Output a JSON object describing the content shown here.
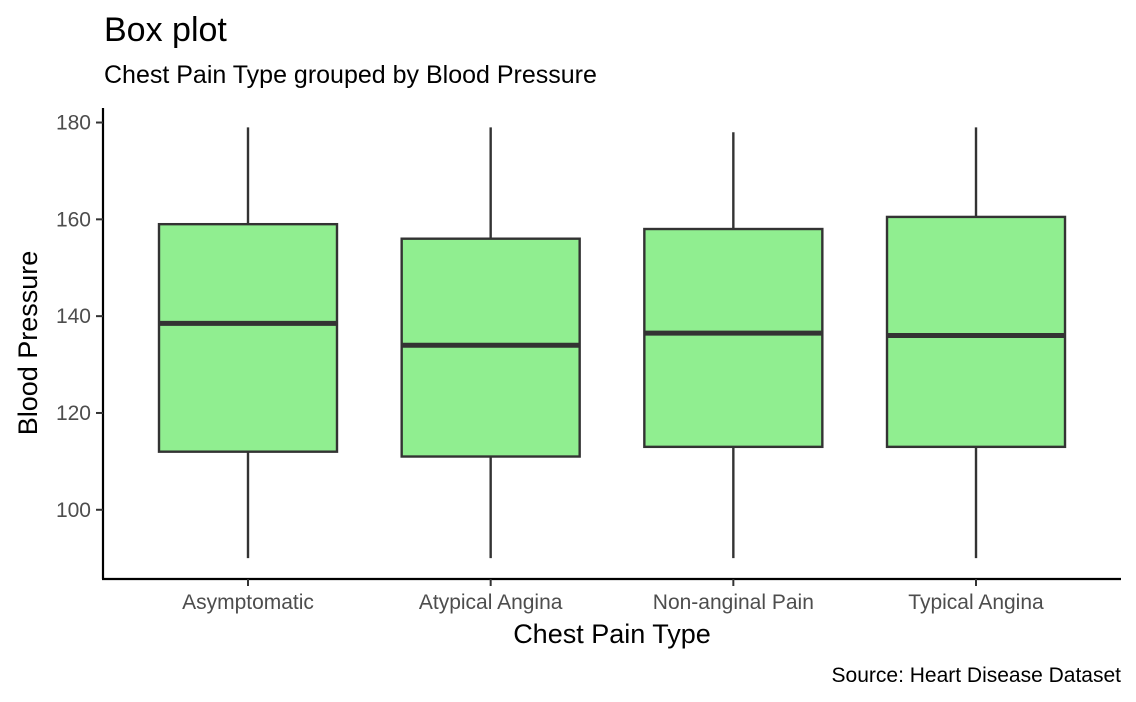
{
  "chart_data": {
    "type": "box",
    "title": "Box plot",
    "subtitle": "Chest Pain Type grouped by Blood Pressure",
    "caption": "Source: Heart Disease Dataset",
    "xlabel": "Chest Pain Type",
    "ylabel": "Blood Pressure",
    "ylim": [
      85.7,
      183
    ],
    "yticks": [
      100,
      120,
      140,
      160,
      180
    ],
    "grid": false,
    "colors": {
      "fill": "#90EE90",
      "stroke": "#333333",
      "axis": "#000000"
    },
    "categories": [
      "Asymptomatic",
      "Atypical Angina",
      "Non-anginal Pain",
      "Typical Angina"
    ],
    "boxes": [
      {
        "category": "Asymptomatic",
        "min": 90,
        "q1": 112,
        "median": 138.5,
        "q3": 159,
        "max": 179
      },
      {
        "category": "Atypical Angina",
        "min": 90,
        "q1": 111,
        "median": 134,
        "q3": 156,
        "max": 179
      },
      {
        "category": "Non-anginal Pain",
        "min": 90,
        "q1": 113,
        "median": 136.5,
        "q3": 158,
        "max": 178
      },
      {
        "category": "Typical Angina",
        "min": 90,
        "q1": 113,
        "median": 136,
        "q3": 160.5,
        "max": 179
      }
    ]
  }
}
